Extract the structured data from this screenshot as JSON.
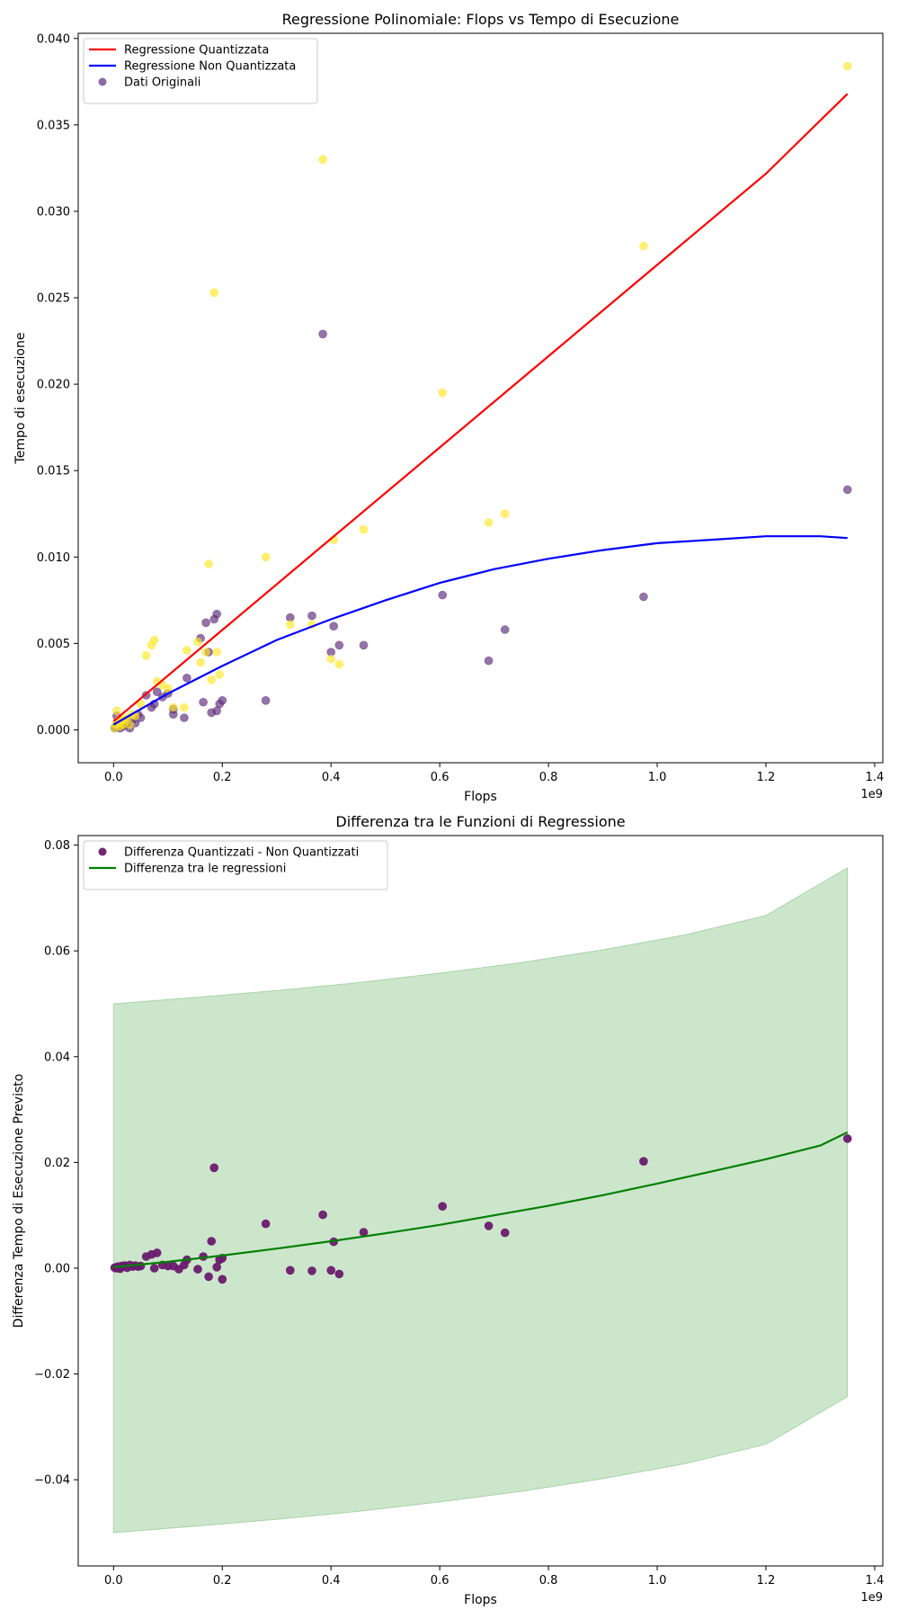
{
  "chart_data": [
    {
      "type": "scatter",
      "title": "Regressione Polinomiale: Flops vs Tempo di Esecuzione",
      "xlabel": "Flops",
      "ylabel": "Tempo di esecuzione",
      "x_offset_label": "1e9",
      "xlim": [
        -0.065,
        1.415
      ],
      "ylim": [
        -0.0019,
        0.0403
      ],
      "x_ticks": [
        0.0,
        0.2,
        0.4,
        0.6,
        0.8,
        1.0,
        1.2,
        1.4
      ],
      "x_tick_labels": [
        "0.0",
        "0.2",
        "0.4",
        "0.6",
        "0.8",
        "1.0",
        "1.2",
        "1.4"
      ],
      "y_ticks": [
        0.0,
        0.005,
        0.01,
        0.015,
        0.02,
        0.025,
        0.03,
        0.035,
        0.04
      ],
      "y_tick_labels": [
        "0.000",
        "0.005",
        "0.010",
        "0.015",
        "0.020",
        "0.025",
        "0.030",
        "0.035",
        "0.040"
      ],
      "grid": false,
      "legend_position": "top-left",
      "legend": [
        {
          "label": "Regressione Quantizzata",
          "kind": "line",
          "color": "#ff0000"
        },
        {
          "label": "Regressione Non Quantizzata",
          "kind": "line",
          "color": "#0000ff"
        },
        {
          "label": "Dati Originali",
          "kind": "marker",
          "color": "#5b2a7a"
        }
      ],
      "series": [
        {
          "name": "Regressione Quantizzata",
          "kind": "line",
          "color": "#ff0000",
          "x": [
            0.0,
            0.2,
            0.4,
            0.6,
            0.8,
            1.0,
            1.2,
            1.35
          ],
          "y": [
            0.0005,
            0.00578,
            0.01106,
            0.01634,
            0.02162,
            0.0269,
            0.03218,
            0.0368
          ]
        },
        {
          "name": "Regressione Non Quantizzata",
          "kind": "line",
          "color": "#0000ff",
          "x": [
            0.0,
            0.1,
            0.2,
            0.3,
            0.4,
            0.5,
            0.6,
            0.7,
            0.8,
            0.9,
            1.0,
            1.1,
            1.2,
            1.3,
            1.35
          ],
          "y": [
            0.0003,
            0.0021,
            0.0037,
            0.0052,
            0.0064,
            0.0075,
            0.0085,
            0.0093,
            0.0099,
            0.0104,
            0.0108,
            0.011,
            0.0112,
            0.0112,
            0.0111
          ]
        },
        {
          "name": "Dati Originali",
          "kind": "scatter",
          "color": "#5b2a7a",
          "x": [
            0.002,
            0.004,
            0.006,
            0.008,
            0.01,
            0.012,
            0.015,
            0.018,
            0.02,
            0.025,
            0.03,
            0.035,
            0.04,
            0.045,
            0.05,
            0.06,
            0.07,
            0.075,
            0.08,
            0.09,
            0.1,
            0.11,
            0.11,
            0.13,
            0.135,
            0.16,
            0.165,
            0.17,
            0.175,
            0.18,
            0.185,
            0.19,
            0.19,
            0.195,
            0.2,
            0.28,
            0.325,
            0.365,
            0.385,
            0.4,
            0.405,
            0.415,
            0.46,
            0.605,
            0.69,
            0.72,
            0.975,
            1.35
          ],
          "y": [
            0.0001,
            0.0002,
            0.0008,
            0.0003,
            0.0005,
            0.0001,
            0.0004,
            0.0002,
            0.0003,
            0.0004,
            0.0001,
            0.0006,
            0.0004,
            0.0009,
            0.0007,
            0.002,
            0.0013,
            0.0015,
            0.0022,
            0.0019,
            0.0021,
            0.0012,
            0.0009,
            0.0007,
            0.003,
            0.0053,
            0.0016,
            0.0062,
            0.0045,
            0.001,
            0.0064,
            0.0067,
            0.0011,
            0.0015,
            0.0017,
            0.0017,
            0.0065,
            0.0066,
            0.0229,
            0.0045,
            0.006,
            0.0049,
            0.0049,
            0.0078,
            0.004,
            0.0058,
            0.0077,
            0.0139
          ]
        },
        {
          "name": "Dati Quantizzati",
          "kind": "scatter",
          "color": "#fde725",
          "x": [
            0.002,
            0.004,
            0.006,
            0.008,
            0.01,
            0.012,
            0.015,
            0.018,
            0.02,
            0.025,
            0.03,
            0.035,
            0.04,
            0.05,
            0.06,
            0.07,
            0.075,
            0.08,
            0.09,
            0.1,
            0.11,
            0.13,
            0.135,
            0.155,
            0.16,
            0.17,
            0.175,
            0.18,
            0.185,
            0.19,
            0.195,
            0.28,
            0.325,
            0.365,
            0.385,
            0.4,
            0.405,
            0.415,
            0.46,
            0.605,
            0.69,
            0.72,
            0.975,
            1.35
          ],
          "y": [
            0.0001,
            0.0003,
            0.0011,
            0.0004,
            0.0006,
            0.0002,
            0.0005,
            0.0003,
            0.0006,
            0.0007,
            0.0003,
            0.0009,
            0.0008,
            0.0015,
            0.0043,
            0.0049,
            0.0052,
            0.0028,
            0.0026,
            0.0024,
            0.0013,
            0.0013,
            0.0046,
            0.0051,
            0.0039,
            0.0045,
            0.0096,
            0.0029,
            0.0253,
            0.0045,
            0.0032,
            0.01,
            0.0061,
            0.0061,
            0.033,
            0.0041,
            0.011,
            0.0038,
            0.0116,
            0.0195,
            0.012,
            0.0125,
            0.028,
            0.0384
          ]
        }
      ]
    },
    {
      "type": "scatter",
      "title": "Differenza tra le Funzioni di Regressione",
      "xlabel": "Flops",
      "ylabel": "Differenza Tempo di Esecuzione Previsto",
      "x_offset_label": "1e9",
      "xlim": [
        -0.065,
        1.415
      ],
      "ylim": [
        -0.0563,
        0.0818
      ],
      "x_ticks": [
        0.0,
        0.2,
        0.4,
        0.6,
        0.8,
        1.0,
        1.2,
        1.4
      ],
      "x_tick_labels": [
        "0.0",
        "0.2",
        "0.4",
        "0.6",
        "0.8",
        "1.0",
        "1.2",
        "1.4"
      ],
      "y_ticks": [
        -0.04,
        -0.02,
        0.0,
        0.02,
        0.04,
        0.06,
        0.08
      ],
      "y_tick_labels": [
        "−0.04",
        "−0.02",
        "0.00",
        "0.02",
        "0.04",
        "0.06",
        "0.08"
      ],
      "grid": false,
      "legend_position": "top-left",
      "legend": [
        {
          "label": "Differenza Quantizzati - Non Quantizzati",
          "kind": "marker",
          "color": "#6a1b6e"
        },
        {
          "label": "Differenza tra le regressioni",
          "kind": "line",
          "color": "#008000"
        }
      ],
      "series": [
        {
          "name": "Differenza tra le regressioni",
          "kind": "line",
          "color": "#008000",
          "x": [
            0.0,
            0.1,
            0.2,
            0.3,
            0.4,
            0.5,
            0.6,
            0.7,
            0.8,
            0.9,
            1.0,
            1.1,
            1.2,
            1.3,
            1.35
          ],
          "y": [
            0.0002,
            0.0012,
            0.0024,
            0.0037,
            0.0051,
            0.0066,
            0.0082,
            0.01,
            0.0118,
            0.0138,
            0.016,
            0.0183,
            0.0206,
            0.0232,
            0.0257
          ]
        },
        {
          "name": "Differenza Quantizzati - Non Quantizzati",
          "kind": "scatter",
          "color": "#6a1b6e",
          "x": [
            0.002,
            0.005,
            0.008,
            0.01,
            0.012,
            0.015,
            0.018,
            0.02,
            0.025,
            0.03,
            0.035,
            0.04,
            0.045,
            0.05,
            0.06,
            0.07,
            0.075,
            0.08,
            0.09,
            0.1,
            0.11,
            0.12,
            0.13,
            0.135,
            0.155,
            0.165,
            0.175,
            0.18,
            0.185,
            0.19,
            0.195,
            0.2,
            0.2,
            0.28,
            0.325,
            0.365,
            0.385,
            0.4,
            0.405,
            0.415,
            0.46,
            0.605,
            0.69,
            0.72,
            0.975,
            1.35
          ],
          "y": [
            0.0001,
            0.0,
            0.0003,
            0.0002,
            -0.0001,
            0.0004,
            0.0003,
            0.0005,
            0.0001,
            0.0006,
            0.0003,
            0.0005,
            0.0003,
            0.0004,
            0.0022,
            0.0026,
            0.0,
            0.0029,
            0.0006,
            0.0004,
            0.0004,
            -0.0002,
            0.0006,
            0.0016,
            -0.0002,
            0.0022,
            -0.0016,
            0.0051,
            0.019,
            0.0002,
            0.0016,
            0.0019,
            -0.0021,
            0.0084,
            -0.0004,
            -0.0005,
            0.0101,
            -0.0004,
            0.005,
            -0.0011,
            0.0068,
            0.0117,
            0.008,
            0.0067,
            0.0202,
            0.0245
          ]
        },
        {
          "name": "band",
          "kind": "band",
          "color": "#008000",
          "x": [
            0.0,
            0.15,
            0.3,
            0.45,
            0.6,
            0.75,
            0.9,
            1.05,
            1.2,
            1.35
          ],
          "upper": [
            0.05,
            0.0512,
            0.0525,
            0.054,
            0.0558,
            0.0578,
            0.0602,
            0.063,
            0.0667,
            0.0757
          ],
          "lower": [
            -0.05,
            -0.0488,
            -0.0475,
            -0.046,
            -0.0442,
            -0.0422,
            -0.0398,
            -0.037,
            -0.0333,
            -0.0243
          ]
        }
      ]
    }
  ]
}
